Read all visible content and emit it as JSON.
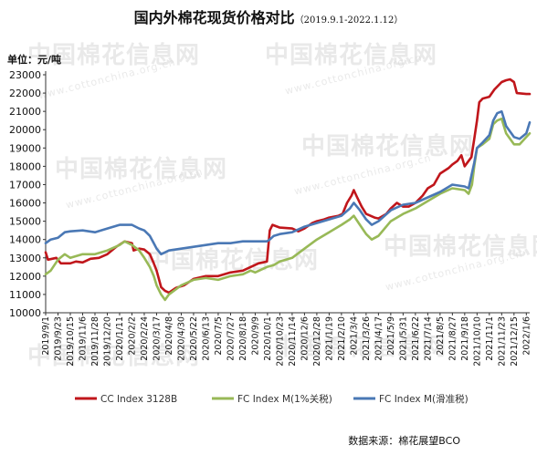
{
  "header": {
    "title": "国内外棉花现货价格对比",
    "subtitle": "（2019.9.1-2022.1.12）"
  },
  "unit_label": "单位：元/吨",
  "source": "数据来源：棉花展望BCO",
  "watermark": {
    "text": "中国棉花信息网",
    "url": "www.cottonchina.org.cn"
  },
  "colors": {
    "cc": "#c0161b",
    "fc_1pct": "#98b957",
    "fc_sliding": "#4a78b5",
    "axis": "#333333",
    "grid": "#e6e6e6"
  },
  "chart_data": {
    "type": "line",
    "ylim": [
      10000,
      23000
    ],
    "yticks": [
      10000,
      11000,
      12000,
      13000,
      14000,
      15000,
      16000,
      17000,
      18000,
      19000,
      20000,
      21000,
      22000,
      23000
    ],
    "xlim": [
      "2019-09-01",
      "2022-01-12"
    ],
    "xtick_labels": [
      "2019/9/1",
      "2019/9/23",
      "2019/10/15",
      "2019/11/6",
      "2019/11/28",
      "2019/12/20",
      "2020/1/11",
      "2020/2/2",
      "2020/2/24",
      "2020/3/17",
      "2020/4/8",
      "2020/4/30",
      "2020/5/22",
      "2020/6/13",
      "2020/7/5",
      "2020/7/27",
      "2020/8/18",
      "2020/9/9",
      "2020/10/1",
      "2020/10/23",
      "2020/11/14",
      "2020/12/6",
      "2020/12/28",
      "2021/1/19",
      "2021/2/10",
      "2021/3/4",
      "2021/3/26",
      "2021/4/17",
      "2021/5/9",
      "2021/5/31",
      "2021/6/22",
      "2021/7/14",
      "2021/8/5",
      "2021/8/27",
      "2021/9/18",
      "2021/10/10",
      "2021/11/1",
      "2021/11/23",
      "2021/12/15",
      "2022/1/6"
    ],
    "grid": false,
    "legend_position": "bottom",
    "series": [
      {
        "name": "CC Index 3128B",
        "color_key": "cc",
        "points": [
          [
            "2019-09-01",
            13300
          ],
          [
            "2019-09-05",
            12900
          ],
          [
            "2019-09-20",
            13000
          ],
          [
            "2019-09-28",
            12700
          ],
          [
            "2019-10-15",
            12700
          ],
          [
            "2019-10-25",
            12800
          ],
          [
            "2019-11-06",
            12750
          ],
          [
            "2019-11-20",
            12950
          ],
          [
            "2019-12-05",
            13000
          ],
          [
            "2019-12-20",
            13200
          ],
          [
            "2020-01-05",
            13600
          ],
          [
            "2020-01-15",
            13800
          ],
          [
            "2020-01-20",
            13900
          ],
          [
            "2020-02-02",
            13800
          ],
          [
            "2020-02-05",
            13400
          ],
          [
            "2020-02-15",
            13500
          ],
          [
            "2020-02-24",
            13450
          ],
          [
            "2020-03-05",
            13200
          ],
          [
            "2020-03-12",
            12700
          ],
          [
            "2020-03-17",
            12300
          ],
          [
            "2020-03-25",
            11400
          ],
          [
            "2020-04-01",
            11200
          ],
          [
            "2020-04-08",
            11100
          ],
          [
            "2020-04-20",
            11350
          ],
          [
            "2020-05-05",
            11500
          ],
          [
            "2020-05-22",
            11850
          ],
          [
            "2020-06-13",
            12000
          ],
          [
            "2020-07-05",
            12000
          ],
          [
            "2020-07-27",
            12200
          ],
          [
            "2020-08-18",
            12300
          ],
          [
            "2020-09-01",
            12500
          ],
          [
            "2020-09-15",
            12700
          ],
          [
            "2020-09-30",
            12800
          ],
          [
            "2020-10-05",
            14500
          ],
          [
            "2020-10-10",
            14800
          ],
          [
            "2020-10-23",
            14650
          ],
          [
            "2020-11-14",
            14600
          ],
          [
            "2020-11-25",
            14450
          ],
          [
            "2020-12-06",
            14600
          ],
          [
            "2020-12-20",
            14900
          ],
          [
            "2020-12-28",
            15000
          ],
          [
            "2021-01-10",
            15100
          ],
          [
            "2021-01-19",
            15200
          ],
          [
            "2021-02-05",
            15300
          ],
          [
            "2021-02-12",
            15400
          ],
          [
            "2021-02-20",
            16000
          ],
          [
            "2021-02-28",
            16400
          ],
          [
            "2021-03-04",
            16700
          ],
          [
            "2021-03-10",
            16300
          ],
          [
            "2021-03-18",
            15800
          ],
          [
            "2021-03-26",
            15400
          ],
          [
            "2021-04-10",
            15200
          ],
          [
            "2021-04-17",
            15150
          ],
          [
            "2021-05-01",
            15400
          ],
          [
            "2021-05-09",
            15700
          ],
          [
            "2021-05-20",
            16000
          ],
          [
            "2021-05-31",
            15800
          ],
          [
            "2021-06-10",
            15800
          ],
          [
            "2021-06-22",
            16000
          ],
          [
            "2021-07-05",
            16400
          ],
          [
            "2021-07-14",
            16800
          ],
          [
            "2021-07-25",
            17000
          ],
          [
            "2021-08-05",
            17600
          ],
          [
            "2021-08-20",
            17900
          ],
          [
            "2021-08-27",
            18100
          ],
          [
            "2021-09-05",
            18300
          ],
          [
            "2021-09-12",
            18600
          ],
          [
            "2021-09-18",
            18000
          ],
          [
            "2021-09-30",
            18500
          ],
          [
            "2021-10-05",
            19500
          ],
          [
            "2021-10-10",
            20500
          ],
          [
            "2021-10-14",
            21500
          ],
          [
            "2021-10-20",
            21700
          ],
          [
            "2021-11-01",
            21800
          ],
          [
            "2021-11-10",
            22200
          ],
          [
            "2021-11-23",
            22600
          ],
          [
            "2021-12-01",
            22700
          ],
          [
            "2021-12-08",
            22750
          ],
          [
            "2021-12-15",
            22600
          ],
          [
            "2021-12-20",
            22000
          ],
          [
            "2022-01-06",
            21950
          ],
          [
            "2022-01-12",
            21950
          ]
        ]
      },
      {
        "name": "FC Index M(1%关税)",
        "color_key": "fc_1pct",
        "points": [
          [
            "2019-09-01",
            12100
          ],
          [
            "2019-09-10",
            12300
          ],
          [
            "2019-09-23",
            12900
          ],
          [
            "2019-10-05",
            13200
          ],
          [
            "2019-10-15",
            13000
          ],
          [
            "2019-11-06",
            13200
          ],
          [
            "2019-11-28",
            13200
          ],
          [
            "2019-12-20",
            13400
          ],
          [
            "2020-01-11",
            13700
          ],
          [
            "2020-01-20",
            13900
          ],
          [
            "2020-02-02",
            13700
          ],
          [
            "2020-02-15",
            13400
          ],
          [
            "2020-02-24",
            13000
          ],
          [
            "2020-03-05",
            12500
          ],
          [
            "2020-03-12",
            12000
          ],
          [
            "2020-03-17",
            11500
          ],
          [
            "2020-03-25",
            11000
          ],
          [
            "2020-04-01",
            10700
          ],
          [
            "2020-04-08",
            11000
          ],
          [
            "2020-04-30",
            11500
          ],
          [
            "2020-05-22",
            11800
          ],
          [
            "2020-06-13",
            11900
          ],
          [
            "2020-07-05",
            11800
          ],
          [
            "2020-07-27",
            12000
          ],
          [
            "2020-08-18",
            12100
          ],
          [
            "2020-09-01",
            12300
          ],
          [
            "2020-09-09",
            12200
          ],
          [
            "2020-09-30",
            12500
          ],
          [
            "2020-10-12",
            12600
          ],
          [
            "2020-10-23",
            12800
          ],
          [
            "2020-11-14",
            13000
          ],
          [
            "2020-12-06",
            13500
          ],
          [
            "2020-12-28",
            14000
          ],
          [
            "2021-01-19",
            14400
          ],
          [
            "2021-02-10",
            14800
          ],
          [
            "2021-02-25",
            15100
          ],
          [
            "2021-03-04",
            15300
          ],
          [
            "2021-03-15",
            14800
          ],
          [
            "2021-03-26",
            14300
          ],
          [
            "2021-04-05",
            14000
          ],
          [
            "2021-04-17",
            14200
          ],
          [
            "2021-05-09",
            15000
          ],
          [
            "2021-05-31",
            15400
          ],
          [
            "2021-06-22",
            15700
          ],
          [
            "2021-07-14",
            16100
          ],
          [
            "2021-08-05",
            16500
          ],
          [
            "2021-08-27",
            16800
          ],
          [
            "2021-09-18",
            16700
          ],
          [
            "2021-09-25",
            16500
          ],
          [
            "2021-10-01",
            17000
          ],
          [
            "2021-10-05",
            18000
          ],
          [
            "2021-10-10",
            19000
          ],
          [
            "2021-10-20",
            19200
          ],
          [
            "2021-11-01",
            19500
          ],
          [
            "2021-11-08",
            20300
          ],
          [
            "2021-11-15",
            20500
          ],
          [
            "2021-11-23",
            20600
          ],
          [
            "2021-12-01",
            19800
          ],
          [
            "2021-12-08",
            19500
          ],
          [
            "2021-12-15",
            19200
          ],
          [
            "2021-12-25",
            19200
          ],
          [
            "2022-01-06",
            19600
          ],
          [
            "2022-01-12",
            19800
          ]
        ]
      },
      {
        "name": "FC Index M(滑准税)",
        "color_key": "fc_sliding",
        "points": [
          [
            "2019-09-01",
            13800
          ],
          [
            "2019-09-10",
            14000
          ],
          [
            "2019-09-23",
            14100
          ],
          [
            "2019-10-05",
            14400
          ],
          [
            "2019-10-15",
            14450
          ],
          [
            "2019-11-06",
            14500
          ],
          [
            "2019-11-28",
            14400
          ],
          [
            "2019-12-20",
            14600
          ],
          [
            "2020-01-11",
            14800
          ],
          [
            "2020-02-02",
            14800
          ],
          [
            "2020-02-15",
            14600
          ],
          [
            "2020-02-24",
            14500
          ],
          [
            "2020-03-05",
            14200
          ],
          [
            "2020-03-12",
            13800
          ],
          [
            "2020-03-17",
            13500
          ],
          [
            "2020-03-25",
            13200
          ],
          [
            "2020-04-08",
            13400
          ],
          [
            "2020-04-30",
            13500
          ],
          [
            "2020-05-22",
            13600
          ],
          [
            "2020-06-13",
            13700
          ],
          [
            "2020-07-05",
            13800
          ],
          [
            "2020-07-27",
            13800
          ],
          [
            "2020-08-18",
            13900
          ],
          [
            "2020-09-09",
            13900
          ],
          [
            "2020-09-30",
            13900
          ],
          [
            "2020-10-05",
            14000
          ],
          [
            "2020-10-12",
            14200
          ],
          [
            "2020-10-23",
            14300
          ],
          [
            "2020-11-14",
            14400
          ],
          [
            "2020-12-06",
            14700
          ],
          [
            "2020-12-28",
            14900
          ],
          [
            "2021-01-19",
            15100
          ],
          [
            "2021-02-10",
            15300
          ],
          [
            "2021-02-25",
            15700
          ],
          [
            "2021-03-04",
            16000
          ],
          [
            "2021-03-15",
            15600
          ],
          [
            "2021-03-26",
            15100
          ],
          [
            "2021-04-05",
            14800
          ],
          [
            "2021-04-17",
            15000
          ],
          [
            "2021-05-09",
            15600
          ],
          [
            "2021-05-31",
            15900
          ],
          [
            "2021-06-22",
            16000
          ],
          [
            "2021-07-14",
            16300
          ],
          [
            "2021-08-05",
            16600
          ],
          [
            "2021-08-27",
            17000
          ],
          [
            "2021-09-18",
            16900
          ],
          [
            "2021-09-25",
            16800
          ],
          [
            "2021-10-05",
            18200
          ],
          [
            "2021-10-10",
            19000
          ],
          [
            "2021-10-20",
            19300
          ],
          [
            "2021-11-01",
            19700
          ],
          [
            "2021-11-08",
            20500
          ],
          [
            "2021-11-15",
            20900
          ],
          [
            "2021-11-23",
            21000
          ],
          [
            "2021-12-01",
            20200
          ],
          [
            "2021-12-08",
            19900
          ],
          [
            "2021-12-15",
            19600
          ],
          [
            "2021-12-25",
            19500
          ],
          [
            "2022-01-06",
            19800
          ],
          [
            "2022-01-12",
            20400
          ]
        ]
      }
    ]
  }
}
